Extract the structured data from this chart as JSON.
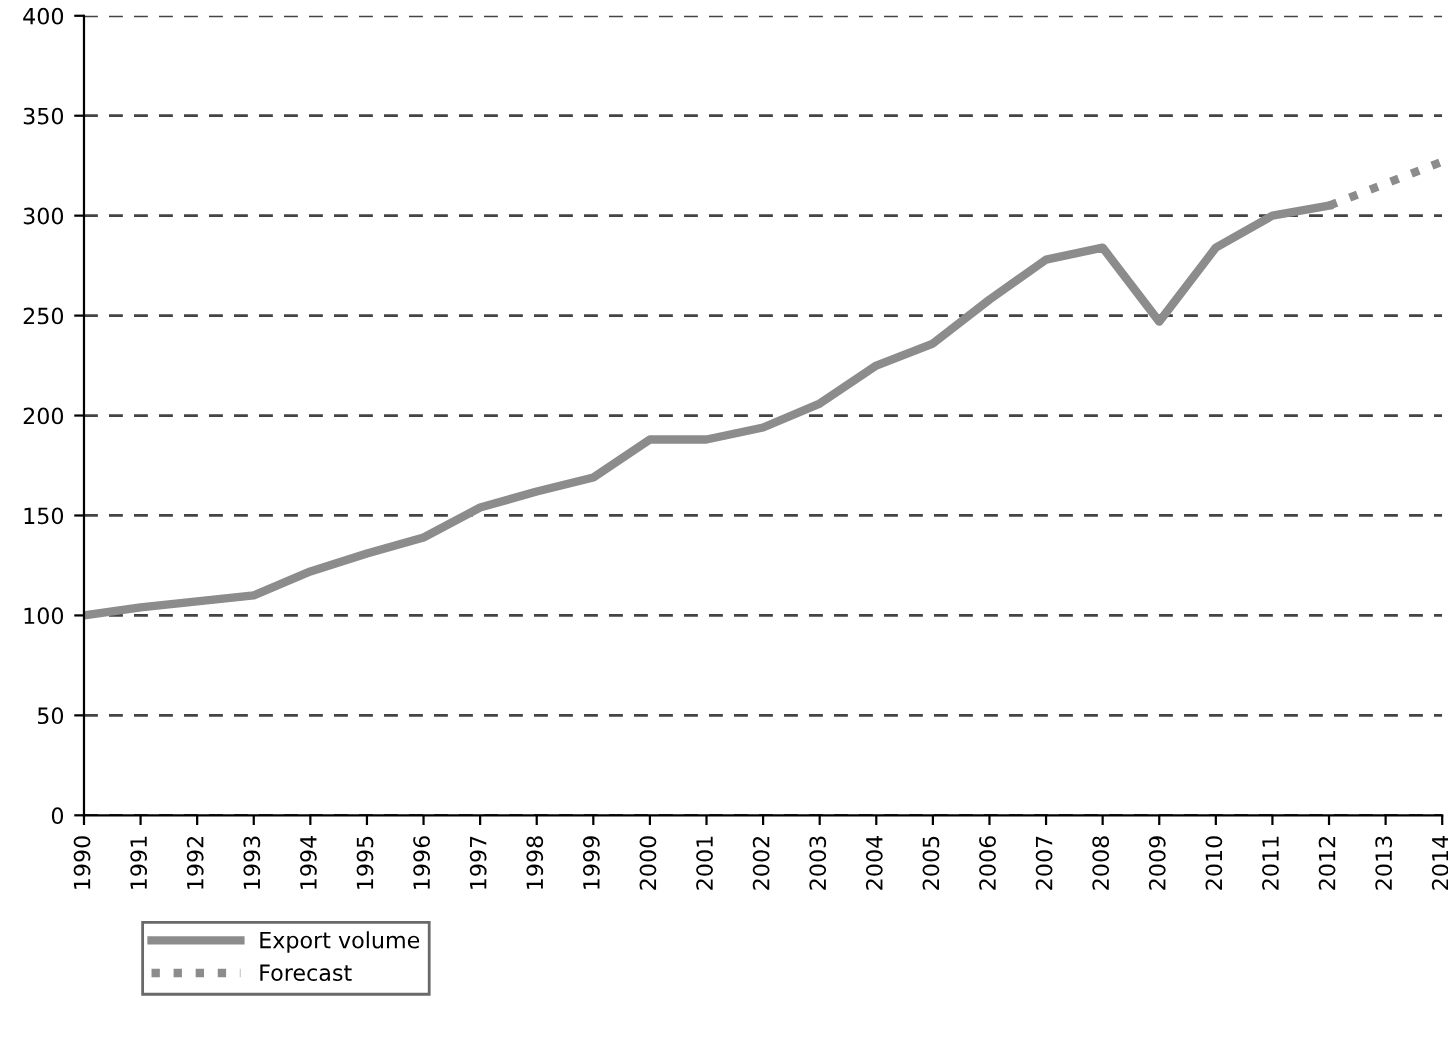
{
  "chart_data": {
    "type": "line",
    "xlim": [
      1990,
      2014
    ],
    "xticks": [
      1990,
      1991,
      1992,
      1993,
      1994,
      1995,
      1996,
      1997,
      1998,
      1999,
      2000,
      2001,
      2002,
      2003,
      2004,
      2005,
      2006,
      2007,
      2008,
      2009,
      2010,
      2011,
      2012,
      2013,
      2014
    ],
    "ylim": [
      0,
      400
    ],
    "yticks": [
      0,
      50,
      100,
      150,
      200,
      250,
      300,
      350,
      400
    ],
    "grid": "y",
    "legend": "bottom left",
    "series": [
      {
        "name": "Export volume",
        "color": "#8c8c8c",
        "line_style": "solid",
        "x": [
          1990,
          1991,
          1992,
          1993,
          1994,
          1995,
          1996,
          1997,
          1998,
          1999,
          2000,
          2001,
          2002,
          2003,
          2004,
          2005,
          2006,
          2007,
          2008,
          2009,
          2010,
          2011,
          2012
        ],
        "values": [
          100,
          104,
          107,
          110,
          122,
          131,
          139,
          154,
          162,
          169,
          188,
          188,
          194,
          206,
          225,
          236,
          258,
          278,
          284,
          247,
          284,
          300,
          305
        ]
      },
      {
        "name": "Forecast",
        "color": "#8c8c8c",
        "line_style": "dotted",
        "x": [
          2012,
          2013,
          2014
        ],
        "values": [
          305,
          316,
          327
        ]
      }
    ]
  }
}
